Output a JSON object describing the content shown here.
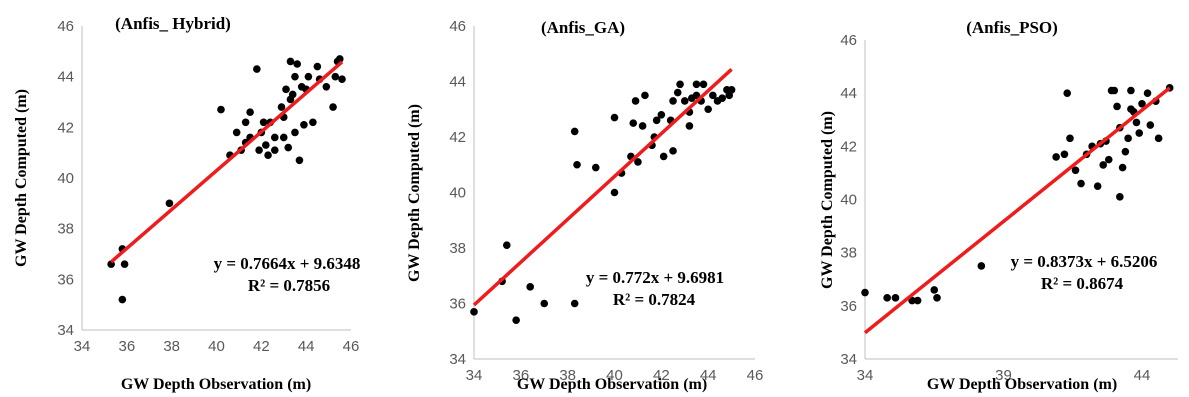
{
  "chart_data": [
    {
      "type": "scatter",
      "title": "(Anfis_ Hybrid)",
      "xlabel": "GW Depth Observation (m)",
      "ylabel": "GW Depth Computed (m)",
      "xlim": [
        34,
        46
      ],
      "ylim": [
        34,
        46
      ],
      "xticks": [
        "34",
        "36",
        "38",
        "40",
        "42",
        "44",
        "46"
      ],
      "yticks": [
        "34",
        "36",
        "38",
        "40",
        "42",
        "44",
        "46"
      ],
      "equation": "y = 0.7664x + 9.6348",
      "r2": "R² = 0.7856",
      "trendline": {
        "slope": 0.7664,
        "intercept": 9.6348,
        "x_range": [
          35.3,
          45.6
        ]
      },
      "points": [
        [
          35.3,
          36.6
        ],
        [
          35.8,
          37.2
        ],
        [
          35.9,
          36.6
        ],
        [
          35.8,
          35.2
        ],
        [
          37.9,
          39.0
        ],
        [
          40.2,
          42.7
        ],
        [
          40.6,
          40.9
        ],
        [
          40.9,
          41.8
        ],
        [
          41.1,
          41.1
        ],
        [
          41.3,
          41.4
        ],
        [
          41.5,
          41.6
        ],
        [
          41.3,
          42.2
        ],
        [
          41.5,
          42.6
        ],
        [
          41.8,
          44.3
        ],
        [
          41.9,
          41.1
        ],
        [
          42.0,
          41.8
        ],
        [
          42.1,
          42.2
        ],
        [
          42.2,
          41.3
        ],
        [
          42.4,
          42.2
        ],
        [
          42.3,
          40.9
        ],
        [
          42.6,
          41.6
        ],
        [
          42.6,
          41.1
        ],
        [
          42.9,
          42.8
        ],
        [
          43.0,
          41.6
        ],
        [
          43.0,
          42.4
        ],
        [
          43.1,
          43.5
        ],
        [
          43.2,
          41.2
        ],
        [
          43.3,
          43.1
        ],
        [
          43.3,
          44.6
        ],
        [
          43.4,
          43.3
        ],
        [
          43.5,
          44.0
        ],
        [
          43.5,
          41.8
        ],
        [
          43.6,
          44.5
        ],
        [
          43.7,
          40.7
        ],
        [
          43.8,
          43.6
        ],
        [
          43.9,
          42.1
        ],
        [
          44.0,
          43.5
        ],
        [
          44.1,
          44.0
        ],
        [
          44.3,
          42.2
        ],
        [
          44.5,
          44.4
        ],
        [
          44.6,
          43.9
        ],
        [
          44.9,
          43.6
        ],
        [
          45.2,
          42.8
        ],
        [
          45.3,
          44.0
        ],
        [
          45.4,
          44.6
        ],
        [
          45.6,
          43.9
        ],
        [
          45.5,
          44.7
        ]
      ]
    },
    {
      "type": "scatter",
      "title": "(Anfis_GA)",
      "xlabel": "GW Depth Observation (m)",
      "ylabel": "GW Depth Computed (m)",
      "xlim": [
        34,
        46
      ],
      "ylim": [
        34,
        46
      ],
      "xticks": [
        "34",
        "36",
        "38",
        "40",
        "42",
        "44",
        "46"
      ],
      "yticks": [
        "34",
        "36",
        "38",
        "40",
        "42",
        "44",
        "46"
      ],
      "equation": "y = 0.772x + 9.6981",
      "r2": "R² = 0.7824",
      "trendline": {
        "slope": 0.772,
        "intercept": 9.6981,
        "x_range": [
          34.0,
          45.0
        ]
      },
      "points": [
        [
          34.0,
          35.7
        ],
        [
          35.2,
          36.8
        ],
        [
          35.4,
          38.1
        ],
        [
          35.8,
          35.4
        ],
        [
          36.4,
          36.6
        ],
        [
          37.0,
          36.0
        ],
        [
          38.3,
          36.0
        ],
        [
          38.3,
          42.2
        ],
        [
          38.4,
          41.0
        ],
        [
          39.2,
          40.9
        ],
        [
          40.0,
          40.0
        ],
        [
          40.0,
          42.7
        ],
        [
          40.3,
          40.7
        ],
        [
          40.7,
          41.3
        ],
        [
          40.8,
          42.5
        ],
        [
          40.9,
          43.3
        ],
        [
          41.0,
          41.1
        ],
        [
          41.2,
          42.4
        ],
        [
          41.3,
          43.5
        ],
        [
          41.6,
          41.7
        ],
        [
          41.7,
          42.0
        ],
        [
          41.8,
          42.6
        ],
        [
          42.0,
          42.8
        ],
        [
          42.1,
          41.3
        ],
        [
          42.4,
          42.6
        ],
        [
          42.5,
          41.5
        ],
        [
          42.5,
          43.3
        ],
        [
          42.7,
          43.6
        ],
        [
          42.8,
          43.9
        ],
        [
          43.0,
          43.3
        ],
        [
          43.2,
          42.9
        ],
        [
          43.2,
          42.4
        ],
        [
          43.3,
          43.4
        ],
        [
          43.5,
          43.5
        ],
        [
          43.5,
          43.9
        ],
        [
          43.7,
          43.3
        ],
        [
          43.8,
          43.9
        ],
        [
          44.0,
          43.0
        ],
        [
          44.2,
          43.5
        ],
        [
          44.4,
          43.3
        ],
        [
          44.6,
          43.4
        ],
        [
          44.8,
          43.7
        ],
        [
          44.9,
          43.5
        ],
        [
          45.0,
          43.7
        ]
      ]
    },
    {
      "type": "scatter",
      "title": "(Anfis_PSO)",
      "xlabel": "GW Depth Observation (m)",
      "ylabel": "GW Depth Computed (m)",
      "xlim": [
        34,
        45.3
      ],
      "ylim": [
        34,
        46
      ],
      "xticks": [
        "34",
        "39",
        "44"
      ],
      "xtick_values": [
        34,
        39,
        44
      ],
      "yticks": [
        "34",
        "36",
        "38",
        "40",
        "42",
        "44",
        "46"
      ],
      "equation": "y = 0.8373x + 6.5206",
      "r2": "R² = 0.8674",
      "trendline": {
        "slope": 0.8373,
        "intercept": 6.5206,
        "x_range": [
          34.0,
          45.0
        ]
      },
      "points": [
        [
          34.0,
          36.5
        ],
        [
          34.8,
          36.3
        ],
        [
          35.1,
          36.3
        ],
        [
          35.7,
          36.2
        ],
        [
          35.9,
          36.2
        ],
        [
          36.5,
          36.6
        ],
        [
          36.6,
          36.3
        ],
        [
          38.2,
          37.5
        ],
        [
          40.9,
          41.6
        ],
        [
          41.2,
          41.7
        ],
        [
          41.3,
          44.0
        ],
        [
          41.4,
          42.3
        ],
        [
          41.6,
          41.1
        ],
        [
          41.8,
          40.6
        ],
        [
          42.0,
          41.7
        ],
        [
          42.2,
          42.0
        ],
        [
          42.4,
          40.5
        ],
        [
          42.5,
          42.1
        ],
        [
          42.6,
          41.3
        ],
        [
          42.7,
          42.2
        ],
        [
          42.8,
          41.5
        ],
        [
          42.9,
          44.1
        ],
        [
          43.0,
          44.1
        ],
        [
          43.1,
          43.5
        ],
        [
          43.2,
          42.7
        ],
        [
          43.2,
          40.1
        ],
        [
          43.3,
          41.2
        ],
        [
          43.4,
          41.8
        ],
        [
          43.5,
          42.3
        ],
        [
          43.6,
          44.1
        ],
        [
          43.6,
          43.4
        ],
        [
          43.7,
          43.3
        ],
        [
          43.8,
          42.9
        ],
        [
          43.9,
          42.5
        ],
        [
          44.0,
          43.6
        ],
        [
          44.2,
          44.0
        ],
        [
          44.3,
          42.8
        ],
        [
          44.5,
          43.7
        ],
        [
          44.6,
          42.3
        ],
        [
          45.0,
          44.2
        ]
      ]
    }
  ]
}
